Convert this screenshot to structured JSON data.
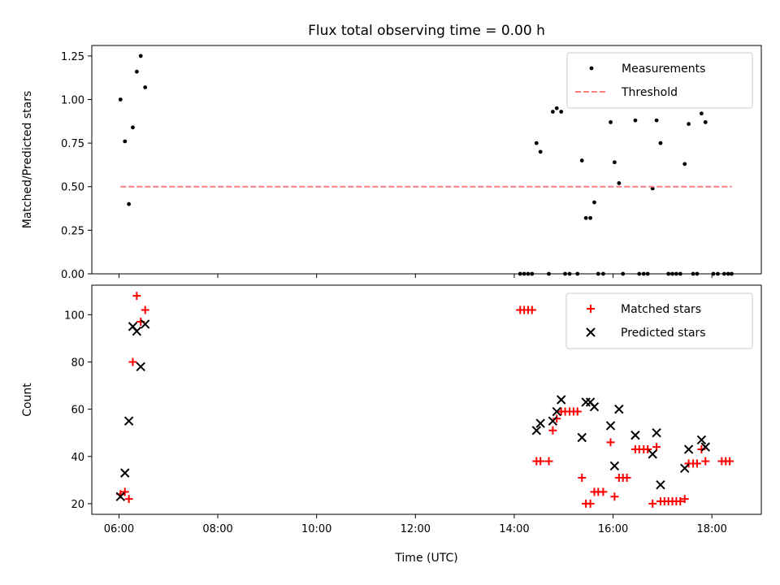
{
  "title": "Flux total observing time = 0.00 h",
  "chart_data": [
    {
      "type": "scatter",
      "ylabel": "Matched/Predicted stars",
      "xlim": [
        5.45,
        19.0
      ],
      "ylim": [
        0.0,
        1.31
      ],
      "x_ticks": [
        "06:00",
        "08:00",
        "10:00",
        "12:00",
        "14:00",
        "16:00",
        "18:00"
      ],
      "y_ticks": [
        "0.00",
        "0.25",
        "0.50",
        "0.75",
        "1.00",
        "1.25"
      ],
      "legend_position": "upper-right",
      "series": [
        {
          "name": "Measurements",
          "color": "#000000",
          "marker": "dot",
          "points": [
            [
              6.03,
              1.0
            ],
            [
              6.12,
              0.76
            ],
            [
              6.2,
              0.4
            ],
            [
              6.28,
              0.84
            ],
            [
              6.36,
              1.16
            ],
            [
              6.44,
              1.25
            ],
            [
              6.53,
              1.07
            ],
            [
              14.12,
              0.0
            ],
            [
              14.2,
              0.0
            ],
            [
              14.28,
              0.0
            ],
            [
              14.36,
              0.0
            ],
            [
              14.45,
              0.75
            ],
            [
              14.53,
              0.7
            ],
            [
              14.78,
              0.93
            ],
            [
              14.86,
              0.95
            ],
            [
              14.95,
              0.93
            ],
            [
              14.7,
              0.0
            ],
            [
              15.03,
              0.0
            ],
            [
              15.12,
              0.0
            ],
            [
              15.28,
              0.0
            ],
            [
              15.37,
              0.65
            ],
            [
              15.45,
              0.32
            ],
            [
              15.54,
              0.32
            ],
            [
              15.62,
              0.41
            ],
            [
              15.7,
              0.0
            ],
            [
              15.8,
              0.0
            ],
            [
              15.95,
              0.87
            ],
            [
              16.03,
              0.64
            ],
            [
              16.12,
              0.52
            ],
            [
              16.2,
              0.0
            ],
            [
              16.45,
              0.88
            ],
            [
              16.53,
              0.0
            ],
            [
              16.62,
              0.0
            ],
            [
              16.7,
              0.0
            ],
            [
              16.8,
              0.49
            ],
            [
              16.88,
              0.88
            ],
            [
              16.96,
              0.75
            ],
            [
              17.12,
              0.0
            ],
            [
              17.2,
              0.0
            ],
            [
              17.28,
              0.0
            ],
            [
              17.36,
              0.0
            ],
            [
              17.45,
              0.63
            ],
            [
              17.53,
              0.86
            ],
            [
              17.62,
              0.0
            ],
            [
              17.7,
              0.0
            ],
            [
              17.79,
              0.92
            ],
            [
              17.87,
              0.87
            ],
            [
              18.03,
              0.0
            ],
            [
              18.12,
              0.0
            ],
            [
              18.25,
              0.0
            ],
            [
              18.33,
              0.0
            ],
            [
              18.4,
              0.0
            ]
          ]
        },
        {
          "name": "Threshold",
          "color": "#ff7f7f",
          "marker": "dashed-line",
          "points": [
            [
              6.03,
              0.5
            ],
            [
              18.4,
              0.5
            ]
          ]
        }
      ]
    },
    {
      "type": "scatter",
      "xlabel": "Time (UTC)",
      "ylabel": "Count",
      "xlim": [
        5.45,
        19.0
      ],
      "ylim": [
        15.5,
        112.5
      ],
      "x_ticks": [
        "06:00",
        "08:00",
        "10:00",
        "12:00",
        "14:00",
        "16:00",
        "18:00"
      ],
      "y_ticks": [
        "20",
        "40",
        "60",
        "80",
        "100"
      ],
      "legend_position": "upper-right",
      "series": [
        {
          "name": "Matched stars",
          "color": "#ff0000",
          "marker": "plus",
          "points": [
            [
              6.03,
              24
            ],
            [
              6.12,
              25
            ],
            [
              6.2,
              22
            ],
            [
              6.28,
              80
            ],
            [
              6.36,
              108
            ],
            [
              6.44,
              97
            ],
            [
              6.53,
              102
            ],
            [
              14.12,
              102
            ],
            [
              14.2,
              102
            ],
            [
              14.28,
              102
            ],
            [
              14.36,
              102
            ],
            [
              14.45,
              38
            ],
            [
              14.53,
              38
            ],
            [
              14.7,
              38
            ],
            [
              14.78,
              51
            ],
            [
              14.86,
              56
            ],
            [
              14.95,
              59
            ],
            [
              15.03,
              59
            ],
            [
              15.12,
              59
            ],
            [
              15.2,
              59
            ],
            [
              15.28,
              59
            ],
            [
              15.37,
              31
            ],
            [
              15.45,
              20
            ],
            [
              15.54,
              20
            ],
            [
              15.62,
              25
            ],
            [
              15.7,
              25
            ],
            [
              15.8,
              25
            ],
            [
              15.95,
              46
            ],
            [
              16.03,
              23
            ],
            [
              16.12,
              31
            ],
            [
              16.2,
              31
            ],
            [
              16.28,
              31
            ],
            [
              16.45,
              43
            ],
            [
              16.53,
              43
            ],
            [
              16.62,
              43
            ],
            [
              16.7,
              43
            ],
            [
              16.8,
              20
            ],
            [
              16.88,
              44
            ],
            [
              16.96,
              21
            ],
            [
              17.04,
              21
            ],
            [
              17.12,
              21
            ],
            [
              17.2,
              21
            ],
            [
              17.28,
              21
            ],
            [
              17.36,
              21
            ],
            [
              17.45,
              22
            ],
            [
              17.53,
              37
            ],
            [
              17.62,
              37
            ],
            [
              17.7,
              37
            ],
            [
              17.79,
              43
            ],
            [
              17.87,
              38
            ],
            [
              18.2,
              38
            ],
            [
              18.28,
              38
            ],
            [
              18.36,
              38
            ]
          ]
        },
        {
          "name": "Predicted stars",
          "color": "#000000",
          "marker": "x",
          "points": [
            [
              6.03,
              23
            ],
            [
              6.12,
              33
            ],
            [
              6.2,
              55
            ],
            [
              6.28,
              95
            ],
            [
              6.36,
              93
            ],
            [
              6.44,
              78
            ],
            [
              6.53,
              96
            ],
            [
              14.45,
              51
            ],
            [
              14.53,
              54
            ],
            [
              14.78,
              55
            ],
            [
              14.86,
              59
            ],
            [
              14.95,
              64
            ],
            [
              15.37,
              48
            ],
            [
              15.45,
              63
            ],
            [
              15.54,
              63
            ],
            [
              15.62,
              61
            ],
            [
              15.95,
              53
            ],
            [
              16.03,
              36
            ],
            [
              16.12,
              60
            ],
            [
              16.45,
              49
            ],
            [
              16.8,
              41
            ],
            [
              16.88,
              50
            ],
            [
              16.96,
              28
            ],
            [
              17.45,
              35
            ],
            [
              17.53,
              43
            ],
            [
              17.79,
              47
            ],
            [
              17.87,
              44
            ]
          ]
        }
      ]
    }
  ]
}
